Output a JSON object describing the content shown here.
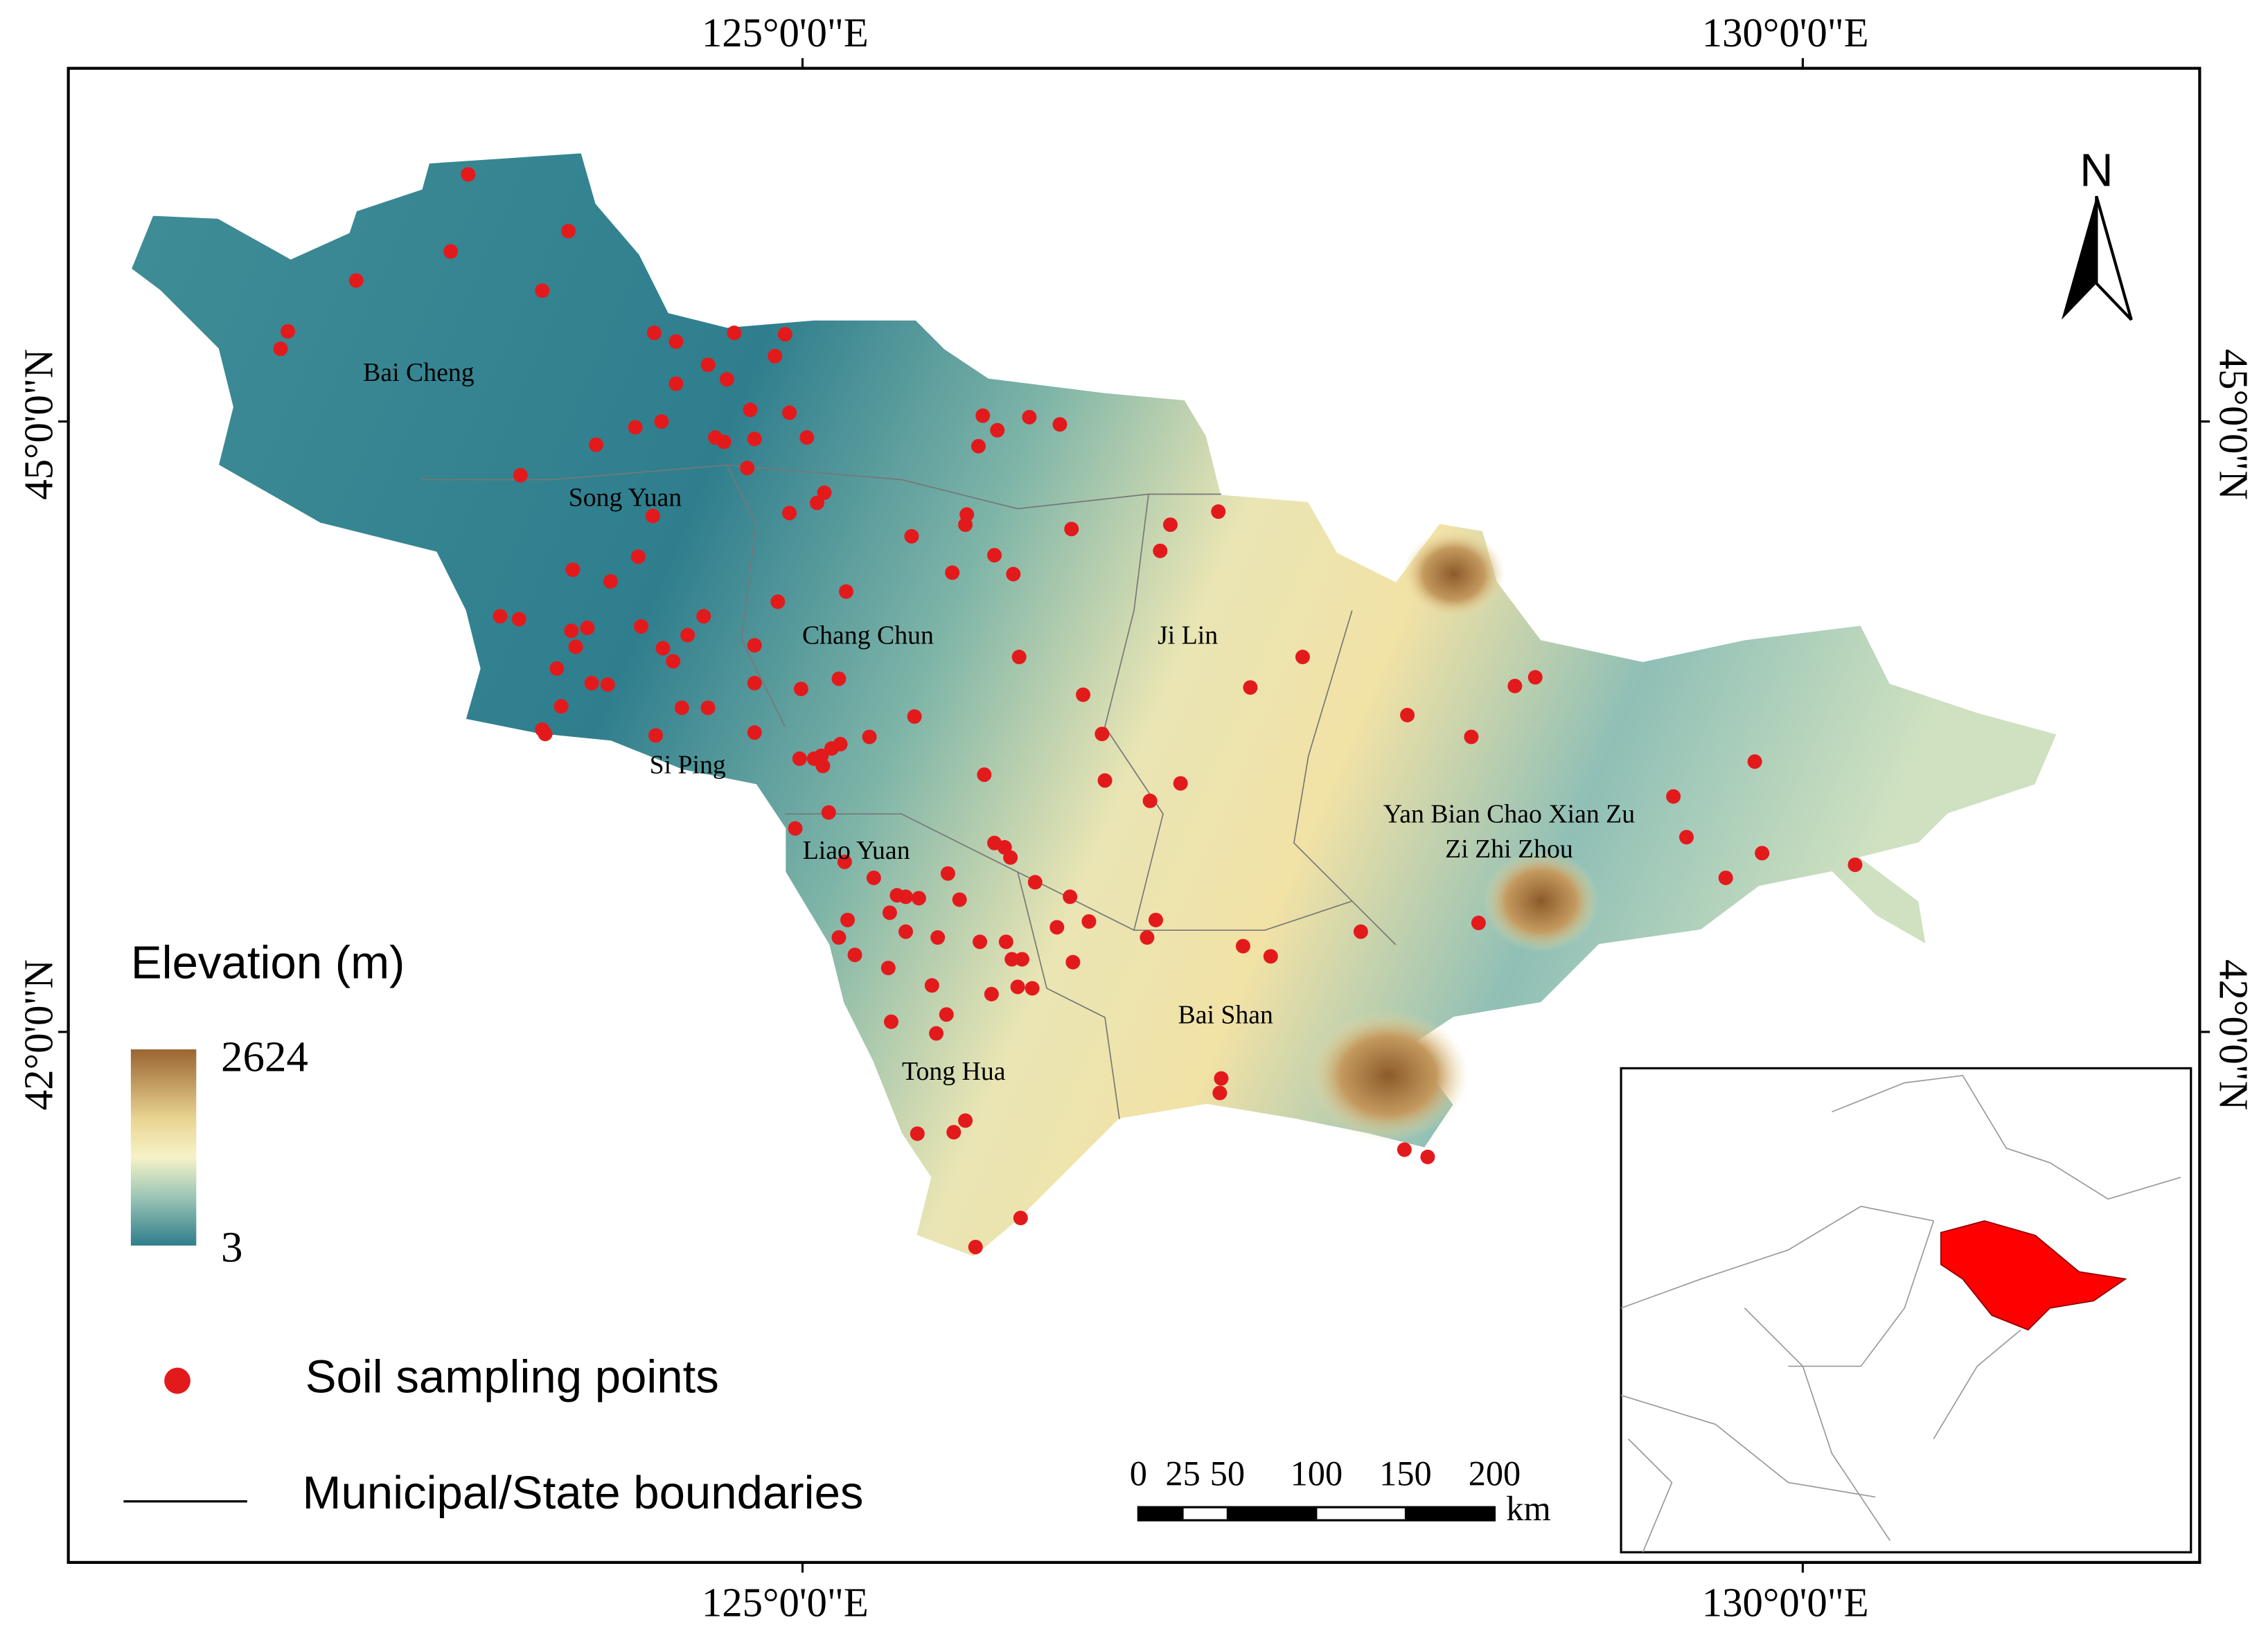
{
  "graticule": {
    "lon": [
      "125°0'0\"E",
      "130°0'0\"E"
    ],
    "lat": [
      "45°0'0\"N",
      "42°0'0\"N"
    ]
  },
  "regions": [
    "Bai  Cheng",
    "Song Yuan",
    "Chang Chun",
    "Ji Lin",
    "Si Ping",
    "Liao Yuan",
    "Yan Bian Chao Xian Zu",
    "Zi Zhi Zhou",
    "Bai Shan",
    "Tong Hua"
  ],
  "north": "N",
  "legend": {
    "title": "Elevation (m)",
    "max": 2624,
    "min": 3,
    "points": "Soil sampling points",
    "boundaries": "Municipal/State boundaries"
  },
  "scale_bar": {
    "ticks": [
      0,
      25,
      50,
      100,
      150,
      200
    ],
    "unit": "km"
  }
}
